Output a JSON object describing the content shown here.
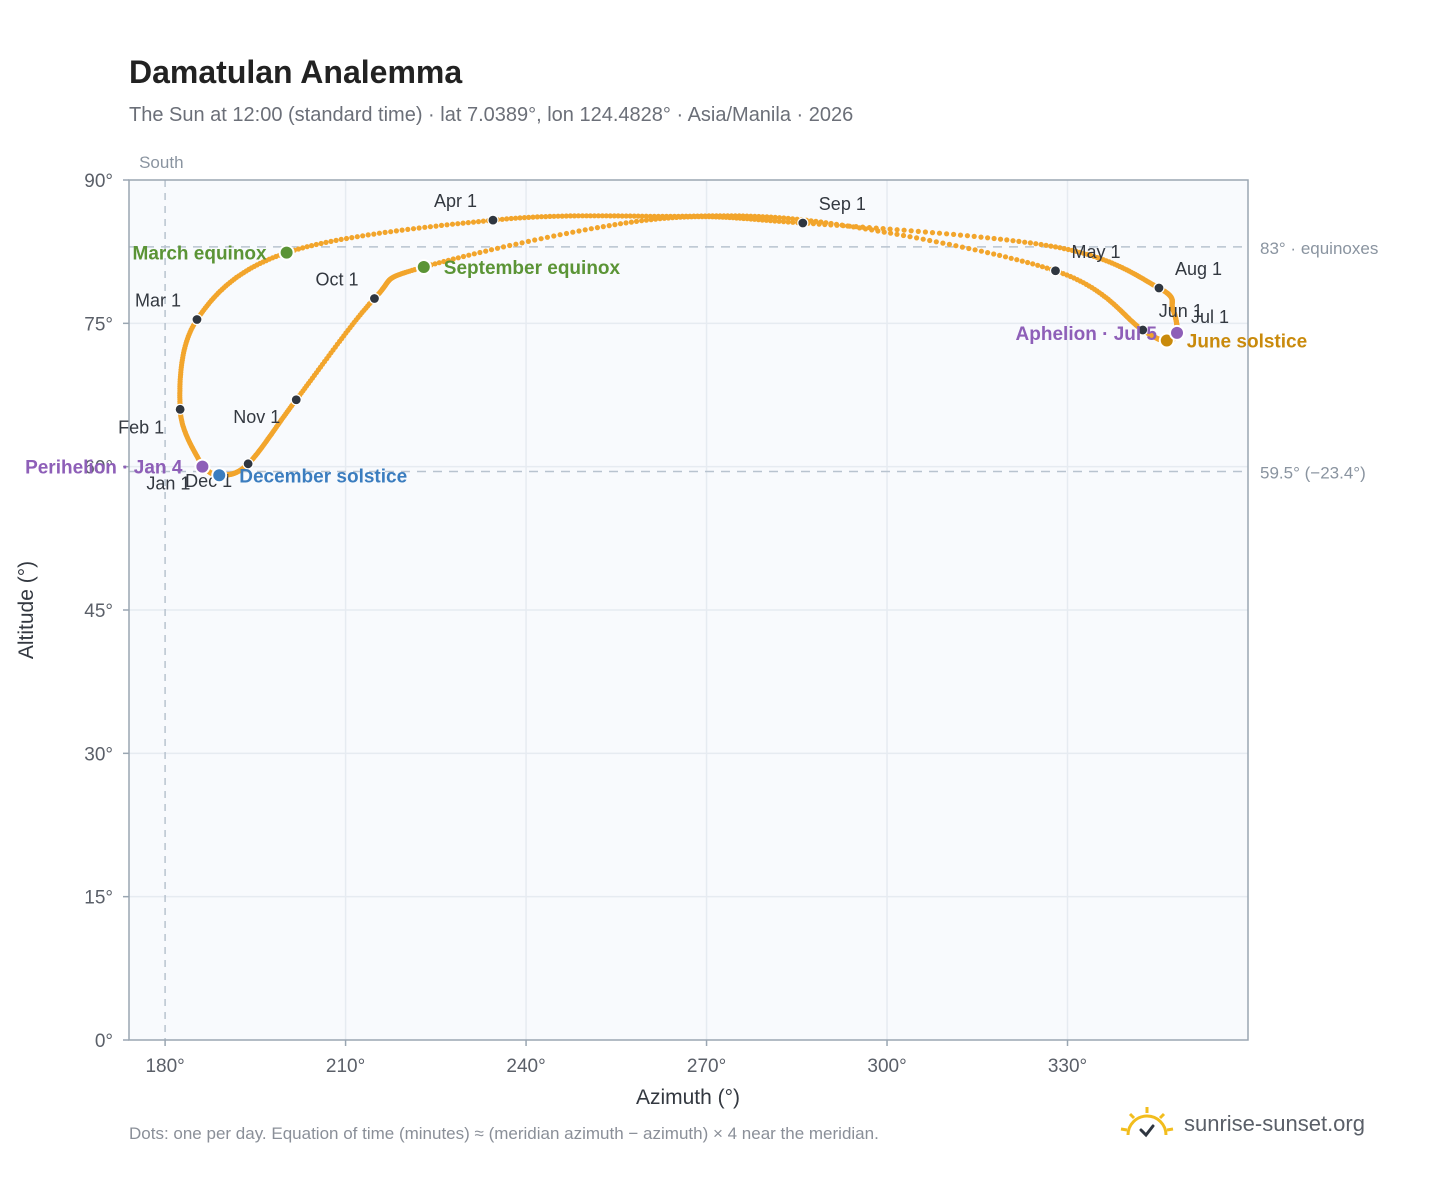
{
  "title": "Damatulan Analemma",
  "subtitle": "The Sun at 12:00 (standard time) · lat 7.0389°, lon 124.4828° · Asia/Manila · 2026",
  "footnote": "Dots: one per day. Equation of time (minutes) ≈ (meridian azimuth − azimuth) × 4 near the meridian.",
  "brand": {
    "name": "sunrise-sunset.org",
    "icon": "sun-check-icon"
  },
  "colors": {
    "curve": "#f2a52c",
    "month_marker": "#2f3640",
    "equinox": "#5b9436",
    "december_solstice": "#3b7dbf",
    "june_solstice": "#c98a0c",
    "apsis": "#8e5fb8",
    "plot_background": "#f8fafd",
    "reference_line": "#b8c3cf"
  },
  "chart_data": {
    "type": "scatter",
    "xlabel": "Azimuth (°)",
    "ylabel": "Altitude (°)",
    "xlim": [
      174,
      360
    ],
    "ylim": [
      0,
      90
    ],
    "x_ticks": [
      180,
      210,
      240,
      270,
      300,
      330
    ],
    "x_tick_labels": [
      "180°",
      "210°",
      "240°",
      "270°",
      "300°",
      "330°"
    ],
    "y_ticks": [
      0,
      15,
      30,
      45,
      60,
      75,
      90
    ],
    "y_tick_labels": [
      "0°",
      "15°",
      "30°",
      "45°",
      "60°",
      "75°",
      "90°"
    ],
    "grid": true,
    "meridian": {
      "azimuth": 180,
      "label": "South"
    },
    "reference_lines": [
      {
        "altitude": 83.0,
        "label": "83° · equinoxes"
      },
      {
        "altitude": 59.5,
        "label": "59.5° (−23.4°)"
      }
    ],
    "path_key_points": [
      {
        "x": 186.2,
        "y": 60.0
      },
      {
        "x": 182.5,
        "y": 66.0
      },
      {
        "x": 185.3,
        "y": 75.4
      },
      {
        "x": 200.2,
        "y": 82.4
      },
      {
        "x": 234.5,
        "y": 85.8
      },
      {
        "x": 262.0,
        "y": 86.2
      },
      {
        "x": 289.0,
        "y": 85.6
      },
      {
        "x": 328.0,
        "y": 80.5
      },
      {
        "x": 342.5,
        "y": 74.3
      },
      {
        "x": 346.5,
        "y": 73.2
      },
      {
        "x": 348.2,
        "y": 74.0
      },
      {
        "x": 347.5,
        "y": 76.5
      },
      {
        "x": 345.2,
        "y": 78.7
      },
      {
        "x": 328.0,
        "y": 83.0
      },
      {
        "x": 286.0,
        "y": 85.5
      },
      {
        "x": 260.0,
        "y": 85.8
      },
      {
        "x": 223.0,
        "y": 80.9
      },
      {
        "x": 214.8,
        "y": 77.6
      },
      {
        "x": 201.8,
        "y": 67.0
      },
      {
        "x": 193.8,
        "y": 60.3
      },
      {
        "x": 189.0,
        "y": 59.1
      },
      {
        "x": 186.2,
        "y": 60.0
      }
    ],
    "month_markers": [
      {
        "label": "Jan 1",
        "x": 186.2,
        "y": 59.9,
        "anchor": "end",
        "dx": -12,
        "dy": 22
      },
      {
        "label": "Feb 1",
        "x": 182.5,
        "y": 66.0,
        "anchor": "end",
        "dx": -16,
        "dy": 24
      },
      {
        "label": "Mar 1",
        "x": 185.3,
        "y": 75.4,
        "anchor": "end",
        "dx": -16,
        "dy": -13
      },
      {
        "label": "Apr 1",
        "x": 234.5,
        "y": 85.8,
        "anchor": "end",
        "dx": -16,
        "dy": -13
      },
      {
        "label": "May 1",
        "x": 328.0,
        "y": 80.5,
        "anchor": "start",
        "dx": 16,
        "dy": -13
      },
      {
        "label": "Jun 1",
        "x": 342.5,
        "y": 74.3,
        "anchor": "start",
        "dx": 16,
        "dy": -13
      },
      {
        "label": "Jul 1",
        "x": 348.2,
        "y": 74.0,
        "anchor": "start",
        "dx": 14,
        "dy": -10
      },
      {
        "label": "Aug 1",
        "x": 345.2,
        "y": 78.7,
        "anchor": "start",
        "dx": 16,
        "dy": -13
      },
      {
        "label": "Sep 1",
        "x": 286.0,
        "y": 85.5,
        "anchor": "start",
        "dx": 16,
        "dy": -13
      },
      {
        "label": "Oct 1",
        "x": 214.8,
        "y": 77.6,
        "anchor": "end",
        "dx": -16,
        "dy": -13
      },
      {
        "label": "Nov 1",
        "x": 201.8,
        "y": 67.0,
        "anchor": "end",
        "dx": -16,
        "dy": 23
      },
      {
        "label": "Dec 1",
        "x": 193.8,
        "y": 60.3,
        "anchor": "end",
        "dx": -16,
        "dy": 23
      }
    ],
    "events": [
      {
        "label": "March equinox",
        "x": 200.2,
        "y": 82.4,
        "color": "#5b9436",
        "anchor": "end",
        "dx": -20,
        "dy": 7
      },
      {
        "label": "September equinox",
        "x": 223.0,
        "y": 80.9,
        "color": "#5b9436",
        "anchor": "start",
        "dx": 20,
        "dy": 7
      },
      {
        "label": "December solstice",
        "x": 189.0,
        "y": 59.1,
        "color": "#3b7dbf",
        "anchor": "start",
        "dx": 20,
        "dy": 7
      },
      {
        "label": "June solstice",
        "x": 346.5,
        "y": 73.2,
        "color": "#c98a0c",
        "anchor": "start",
        "dx": 20,
        "dy": 7
      },
      {
        "label": "Perihelion · Jan 4",
        "x": 186.2,
        "y": 60.0,
        "color": "#8e5fb8",
        "anchor": "end",
        "dx": -20,
        "dy": 7
      },
      {
        "label": "Aphelion · Jul 5",
        "x": 348.2,
        "y": 74.0,
        "color": "#8e5fb8",
        "anchor": "end",
        "dx": -20,
        "dy": 7
      }
    ]
  }
}
